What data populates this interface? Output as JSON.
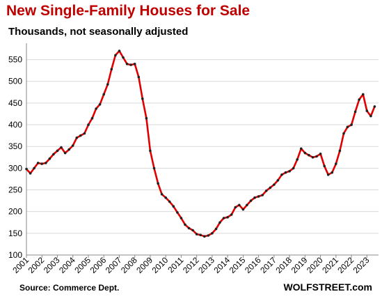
{
  "chart_data": {
    "type": "line",
    "title": "New Single-Family Houses for Sale",
    "subtitle": "Thousands, not seasonally adjusted",
    "source": "Source: Commerce Dept.",
    "brand": "WOLFSTREET.com",
    "ylim": [
      100,
      575
    ],
    "yticks": [
      100,
      150,
      200,
      250,
      300,
      350,
      400,
      450,
      500,
      550
    ],
    "xlim": [
      2001.0,
      2023.75
    ],
    "xticks": [
      "2001",
      "2002",
      "2003",
      "2004",
      "2005",
      "2006",
      "2007",
      "2008",
      "2009",
      "2010",
      "2011",
      "2012",
      "2013",
      "2014",
      "2015",
      "2016",
      "2017",
      "2018",
      "2019",
      "2020",
      "2021",
      "2022",
      "2023"
    ],
    "grid": true,
    "line_color": "#e00000",
    "marker_color": "#222222",
    "series": [
      {
        "x": [
          2001.0,
          2001.25,
          2001.5,
          2001.75,
          2002.0,
          2002.25,
          2002.5,
          2002.75,
          2003.0,
          2003.25,
          2003.5,
          2003.75,
          2004.0,
          2004.25,
          2004.5,
          2004.75,
          2005.0,
          2005.25,
          2005.5,
          2005.75,
          2006.0,
          2006.25,
          2006.5,
          2006.75,
          2007.0,
          2007.25,
          2007.5,
          2007.75,
          2008.0,
          2008.25,
          2008.5,
          2008.75,
          2009.0,
          2009.25,
          2009.5,
          2009.75,
          2010.0,
          2010.25,
          2010.5,
          2010.75,
          2011.0,
          2011.25,
          2011.5,
          2011.75,
          2012.0,
          2012.25,
          2012.5,
          2012.75,
          2013.0,
          2013.25,
          2013.5,
          2013.75,
          2014.0,
          2014.25,
          2014.5,
          2014.75,
          2015.0,
          2015.25,
          2015.5,
          2015.75,
          2016.0,
          2016.25,
          2016.5,
          2016.75,
          2017.0,
          2017.25,
          2017.5,
          2017.75,
          2018.0,
          2018.25,
          2018.5,
          2018.75,
          2019.0,
          2019.25,
          2019.5,
          2019.75,
          2020.0,
          2020.25,
          2020.5,
          2020.75,
          2021.0,
          2021.25,
          2021.5,
          2021.75,
          2022.0,
          2022.25,
          2022.5,
          2022.75,
          2023.0,
          2023.25,
          2023.5
        ],
        "y": [
          298,
          288,
          300,
          312,
          310,
          312,
          322,
          332,
          340,
          348,
          335,
          343,
          352,
          370,
          375,
          380,
          400,
          415,
          437,
          447,
          470,
          493,
          528,
          560,
          570,
          555,
          540,
          538,
          540,
          510,
          460,
          415,
          340,
          300,
          265,
          240,
          232,
          223,
          212,
          198,
          185,
          170,
          162,
          157,
          148,
          146,
          143,
          145,
          150,
          160,
          175,
          185,
          187,
          193,
          210,
          215,
          205,
          215,
          225,
          232,
          235,
          238,
          248,
          255,
          262,
          272,
          285,
          290,
          293,
          300,
          320,
          345,
          335,
          330,
          325,
          327,
          333,
          305,
          285,
          290,
          310,
          340,
          380,
          395,
          400,
          430,
          458,
          470,
          432,
          420,
          442
        ]
      }
    ]
  }
}
